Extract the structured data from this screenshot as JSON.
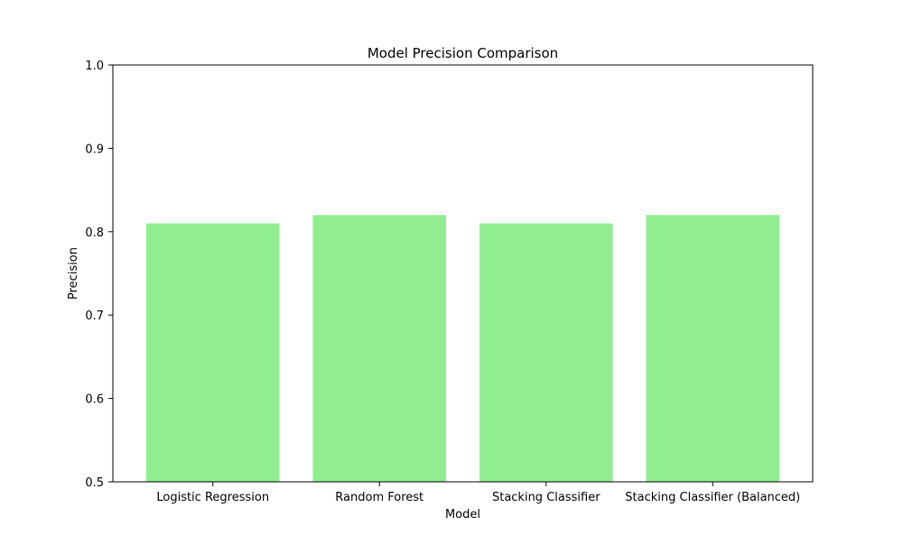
{
  "chart_data": {
    "type": "bar",
    "title": "Model Precision Comparison",
    "xlabel": "Model",
    "ylabel": "Precision",
    "categories": [
      "Logistic Regression",
      "Random Forest",
      "Stacking Classifier",
      "Stacking Classifier (Balanced)"
    ],
    "values": [
      0.81,
      0.82,
      0.81,
      0.82
    ],
    "ylim": [
      0.5,
      1.0
    ],
    "yticks": [
      "0.5",
      "0.6",
      "0.7",
      "0.8",
      "0.9",
      "1.0"
    ],
    "bar_color": "#90ee90",
    "grid": false,
    "legend": "none"
  }
}
